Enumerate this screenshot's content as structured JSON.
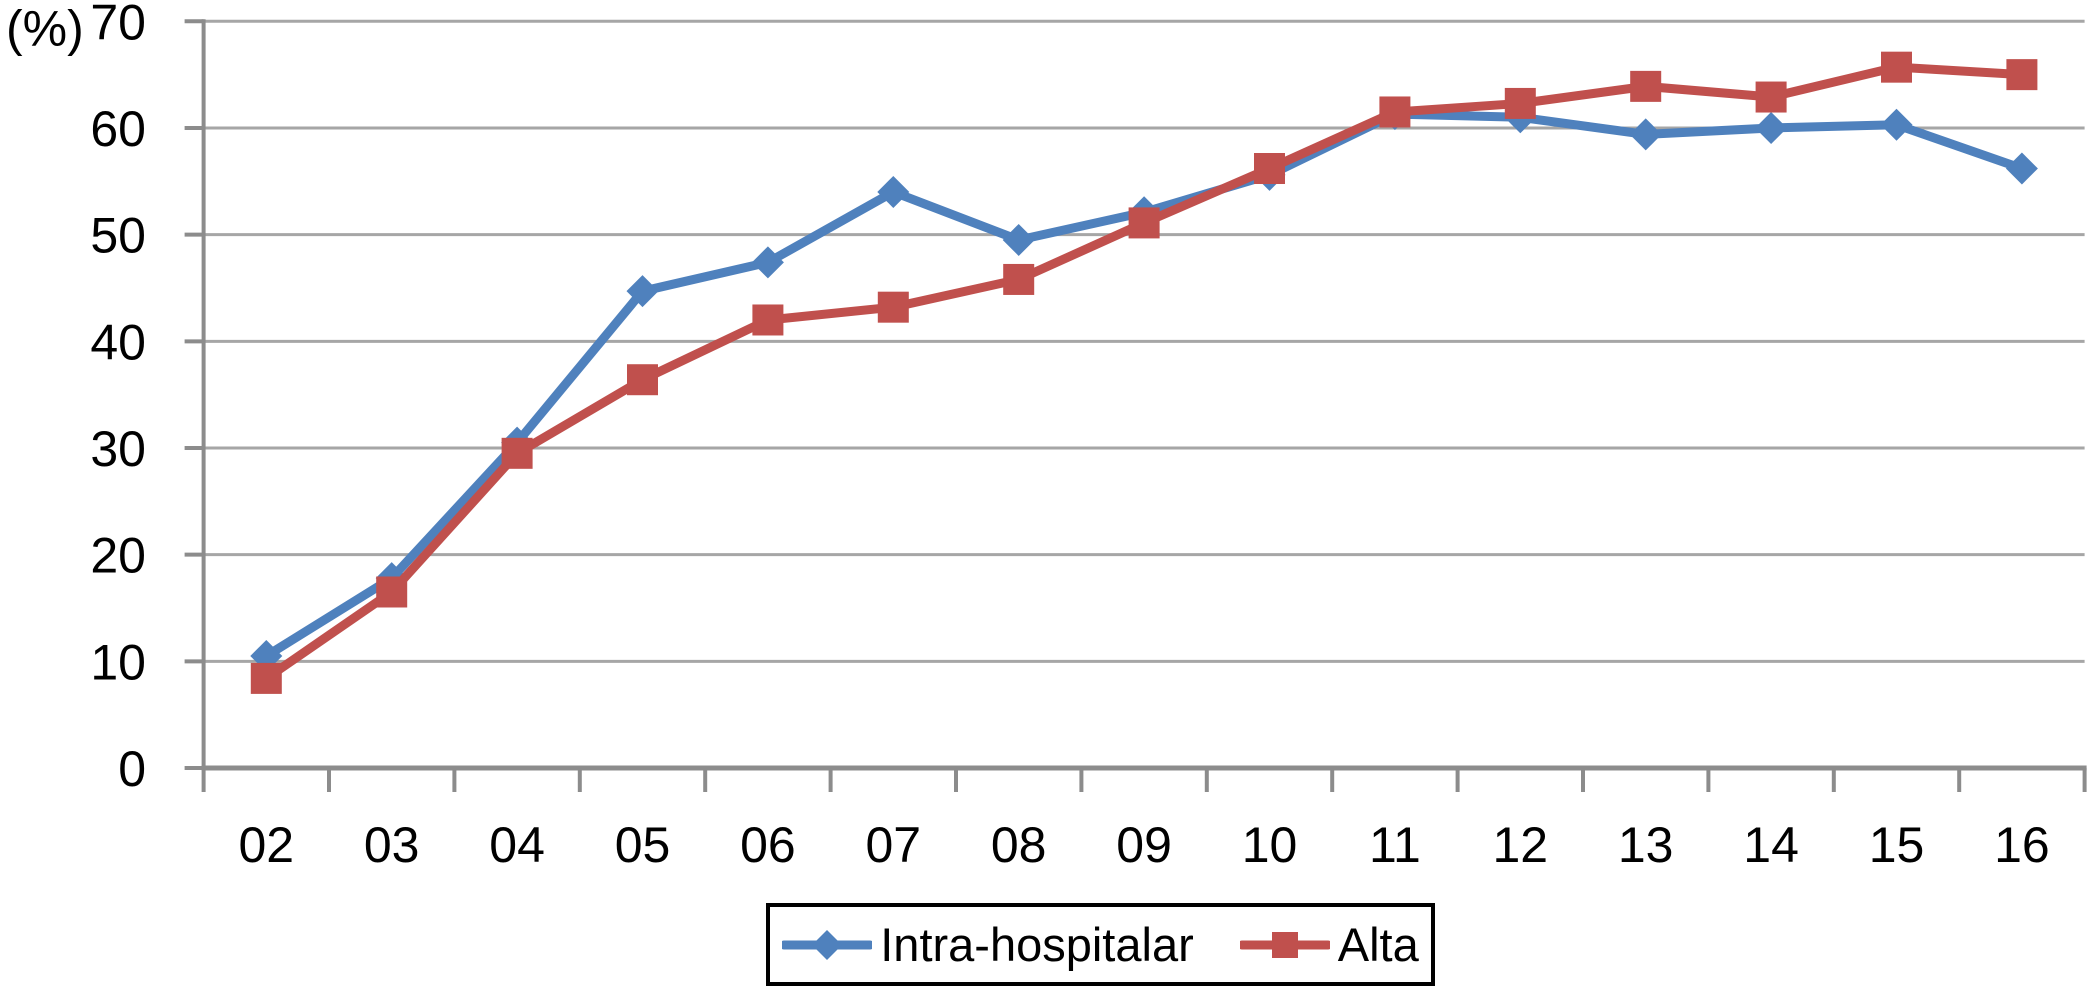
{
  "chart_data": {
    "type": "line",
    "title": "",
    "ylabel": "(%)",
    "xlabel": "",
    "ylim": [
      0,
      70
    ],
    "yticks": [
      0,
      10,
      20,
      30,
      40,
      50,
      60,
      70
    ],
    "grid": true,
    "gridline_color": "#A6A6A6",
    "axis_color": "#8C8C8C",
    "text_color": "#000000",
    "legend_position": "bottom-center",
    "legend_border_color": "#000000",
    "categories": [
      "02",
      "03",
      "04",
      "05",
      "06",
      "07",
      "08",
      "09",
      "10",
      "11",
      "12",
      "13",
      "14",
      "15",
      "16"
    ],
    "series": [
      {
        "name": "Intra-hospitalar",
        "color": "#4F81BD",
        "marker": "diamond",
        "values": [
          10.5,
          17.8,
          30.5,
          44.7,
          47.4,
          54.0,
          49.5,
          52.1,
          55.6,
          61.3,
          61.0,
          59.4,
          60.0,
          60.3,
          56.2
        ]
      },
      {
        "name": "Alta",
        "color": "#C0504D",
        "marker": "square",
        "values": [
          8.4,
          16.5,
          29.5,
          36.4,
          42.0,
          43.2,
          45.8,
          51.1,
          56.2,
          61.5,
          62.3,
          63.9,
          62.9,
          65.7,
          65.0
        ]
      }
    ]
  }
}
